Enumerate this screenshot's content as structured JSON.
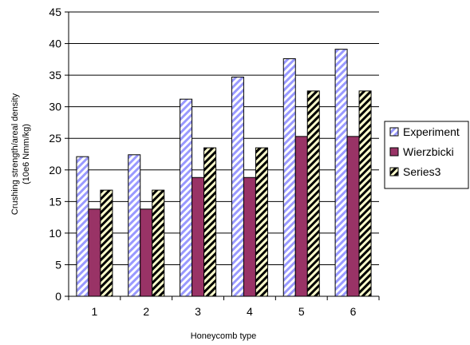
{
  "chart_data": {
    "type": "bar",
    "categories": [
      "1",
      "2",
      "3",
      "4",
      "5",
      "6"
    ],
    "series": [
      {
        "name": "Experiment",
        "values": [
          22.1,
          22.4,
          31.2,
          34.7,
          37.6,
          39.1
        ],
        "color": "#9999ff",
        "pattern": "diagonal-light"
      },
      {
        "name": "Wierzbicki",
        "values": [
          13.8,
          13.8,
          18.8,
          18.8,
          25.3,
          25.3
        ],
        "color": "#993366",
        "pattern": "solid"
      },
      {
        "name": "Series3",
        "values": [
          16.8,
          16.8,
          23.5,
          23.5,
          32.5,
          32.5
        ],
        "color": "#ffffcc",
        "pattern": "diagonal-dark"
      }
    ],
    "yticks": [
      0,
      5,
      10,
      15,
      20,
      25,
      30,
      35,
      40,
      45
    ],
    "ylim": [
      0,
      45
    ],
    "xlabel": "Honeycomb type",
    "ylabel": [
      "Crushing strength/areal density",
      "(10e6 Nmm/kg)"
    ],
    "grid": true,
    "legend_position": "right"
  }
}
